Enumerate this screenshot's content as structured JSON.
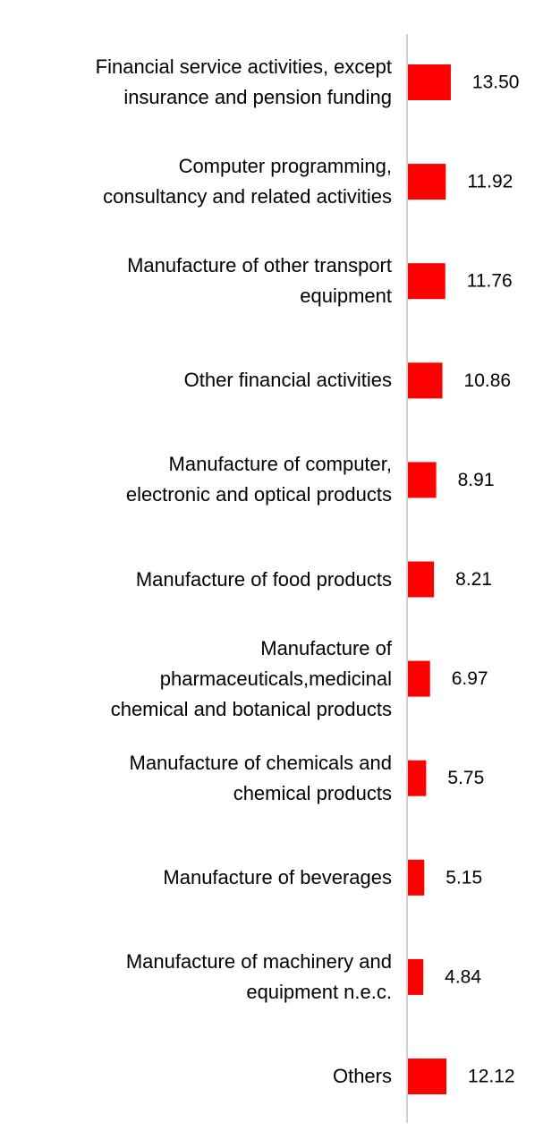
{
  "chart_data": {
    "type": "bar",
    "orientation": "horizontal",
    "title": "",
    "xlabel": "",
    "ylabel": "",
    "categories": [
      [
        "Financial service activities, except",
        "insurance and pension funding"
      ],
      [
        "Computer programming,",
        "consultancy and related activities"
      ],
      [
        "Manufacture of other transport",
        "equipment"
      ],
      [
        "Other financial activities"
      ],
      [
        "Manufacture of computer,",
        "electronic and optical products"
      ],
      [
        "Manufacture of food products"
      ],
      [
        "Manufacture of",
        "pharmaceuticals,medicinal",
        "chemical and botanical products"
      ],
      [
        "Manufacture of chemicals and",
        "chemical products"
      ],
      [
        "Manufacture of beverages"
      ],
      [
        "Manufacture of machinery and",
        "equipment n.e.c."
      ],
      [
        "Others"
      ]
    ],
    "values": [
      13.5,
      11.92,
      11.76,
      10.86,
      8.91,
      8.21,
      6.97,
      5.75,
      5.15,
      4.84,
      12.12
    ],
    "value_labels": [
      "13.50",
      "11.92",
      "11.76",
      "10.86",
      "8.91",
      "8.21",
      "6.97",
      "5.75",
      "5.15",
      "4.84",
      "12.12"
    ],
    "grid": false,
    "legend": "none",
    "bar_color": "#ff0000",
    "axis_color": "#d0d0d0"
  }
}
